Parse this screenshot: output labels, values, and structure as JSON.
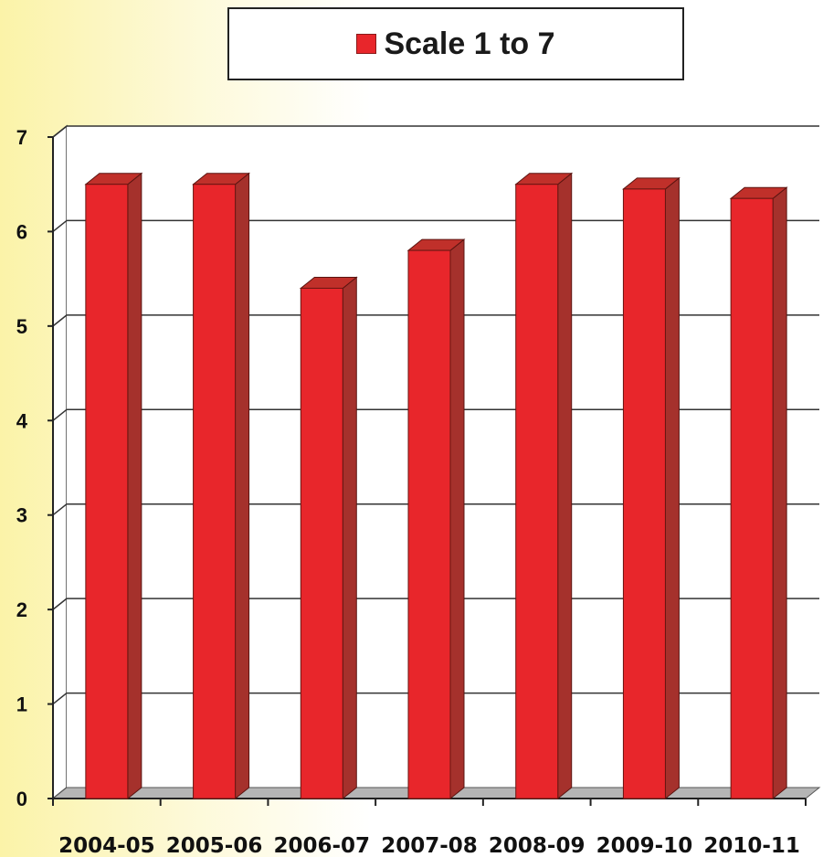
{
  "chart_data": {
    "type": "bar",
    "categories": [
      "2004-05",
      "2005-06",
      "2006-07",
      "2007-08",
      "2008-09",
      "2009-10",
      "2010-11"
    ],
    "series": [
      {
        "name": "Scale 1 to 7",
        "values": [
          6.5,
          6.5,
          5.4,
          5.8,
          6.5,
          6.45,
          6.35
        ],
        "color": "#e8262b"
      }
    ],
    "yticks": [
      "0",
      "1",
      "2",
      "3",
      "4",
      "5",
      "6",
      "7"
    ],
    "ylim": [
      0,
      7
    ],
    "grid": true,
    "legend_position": "top-center",
    "title": "",
    "xlabel": "",
    "ylabel": ""
  }
}
